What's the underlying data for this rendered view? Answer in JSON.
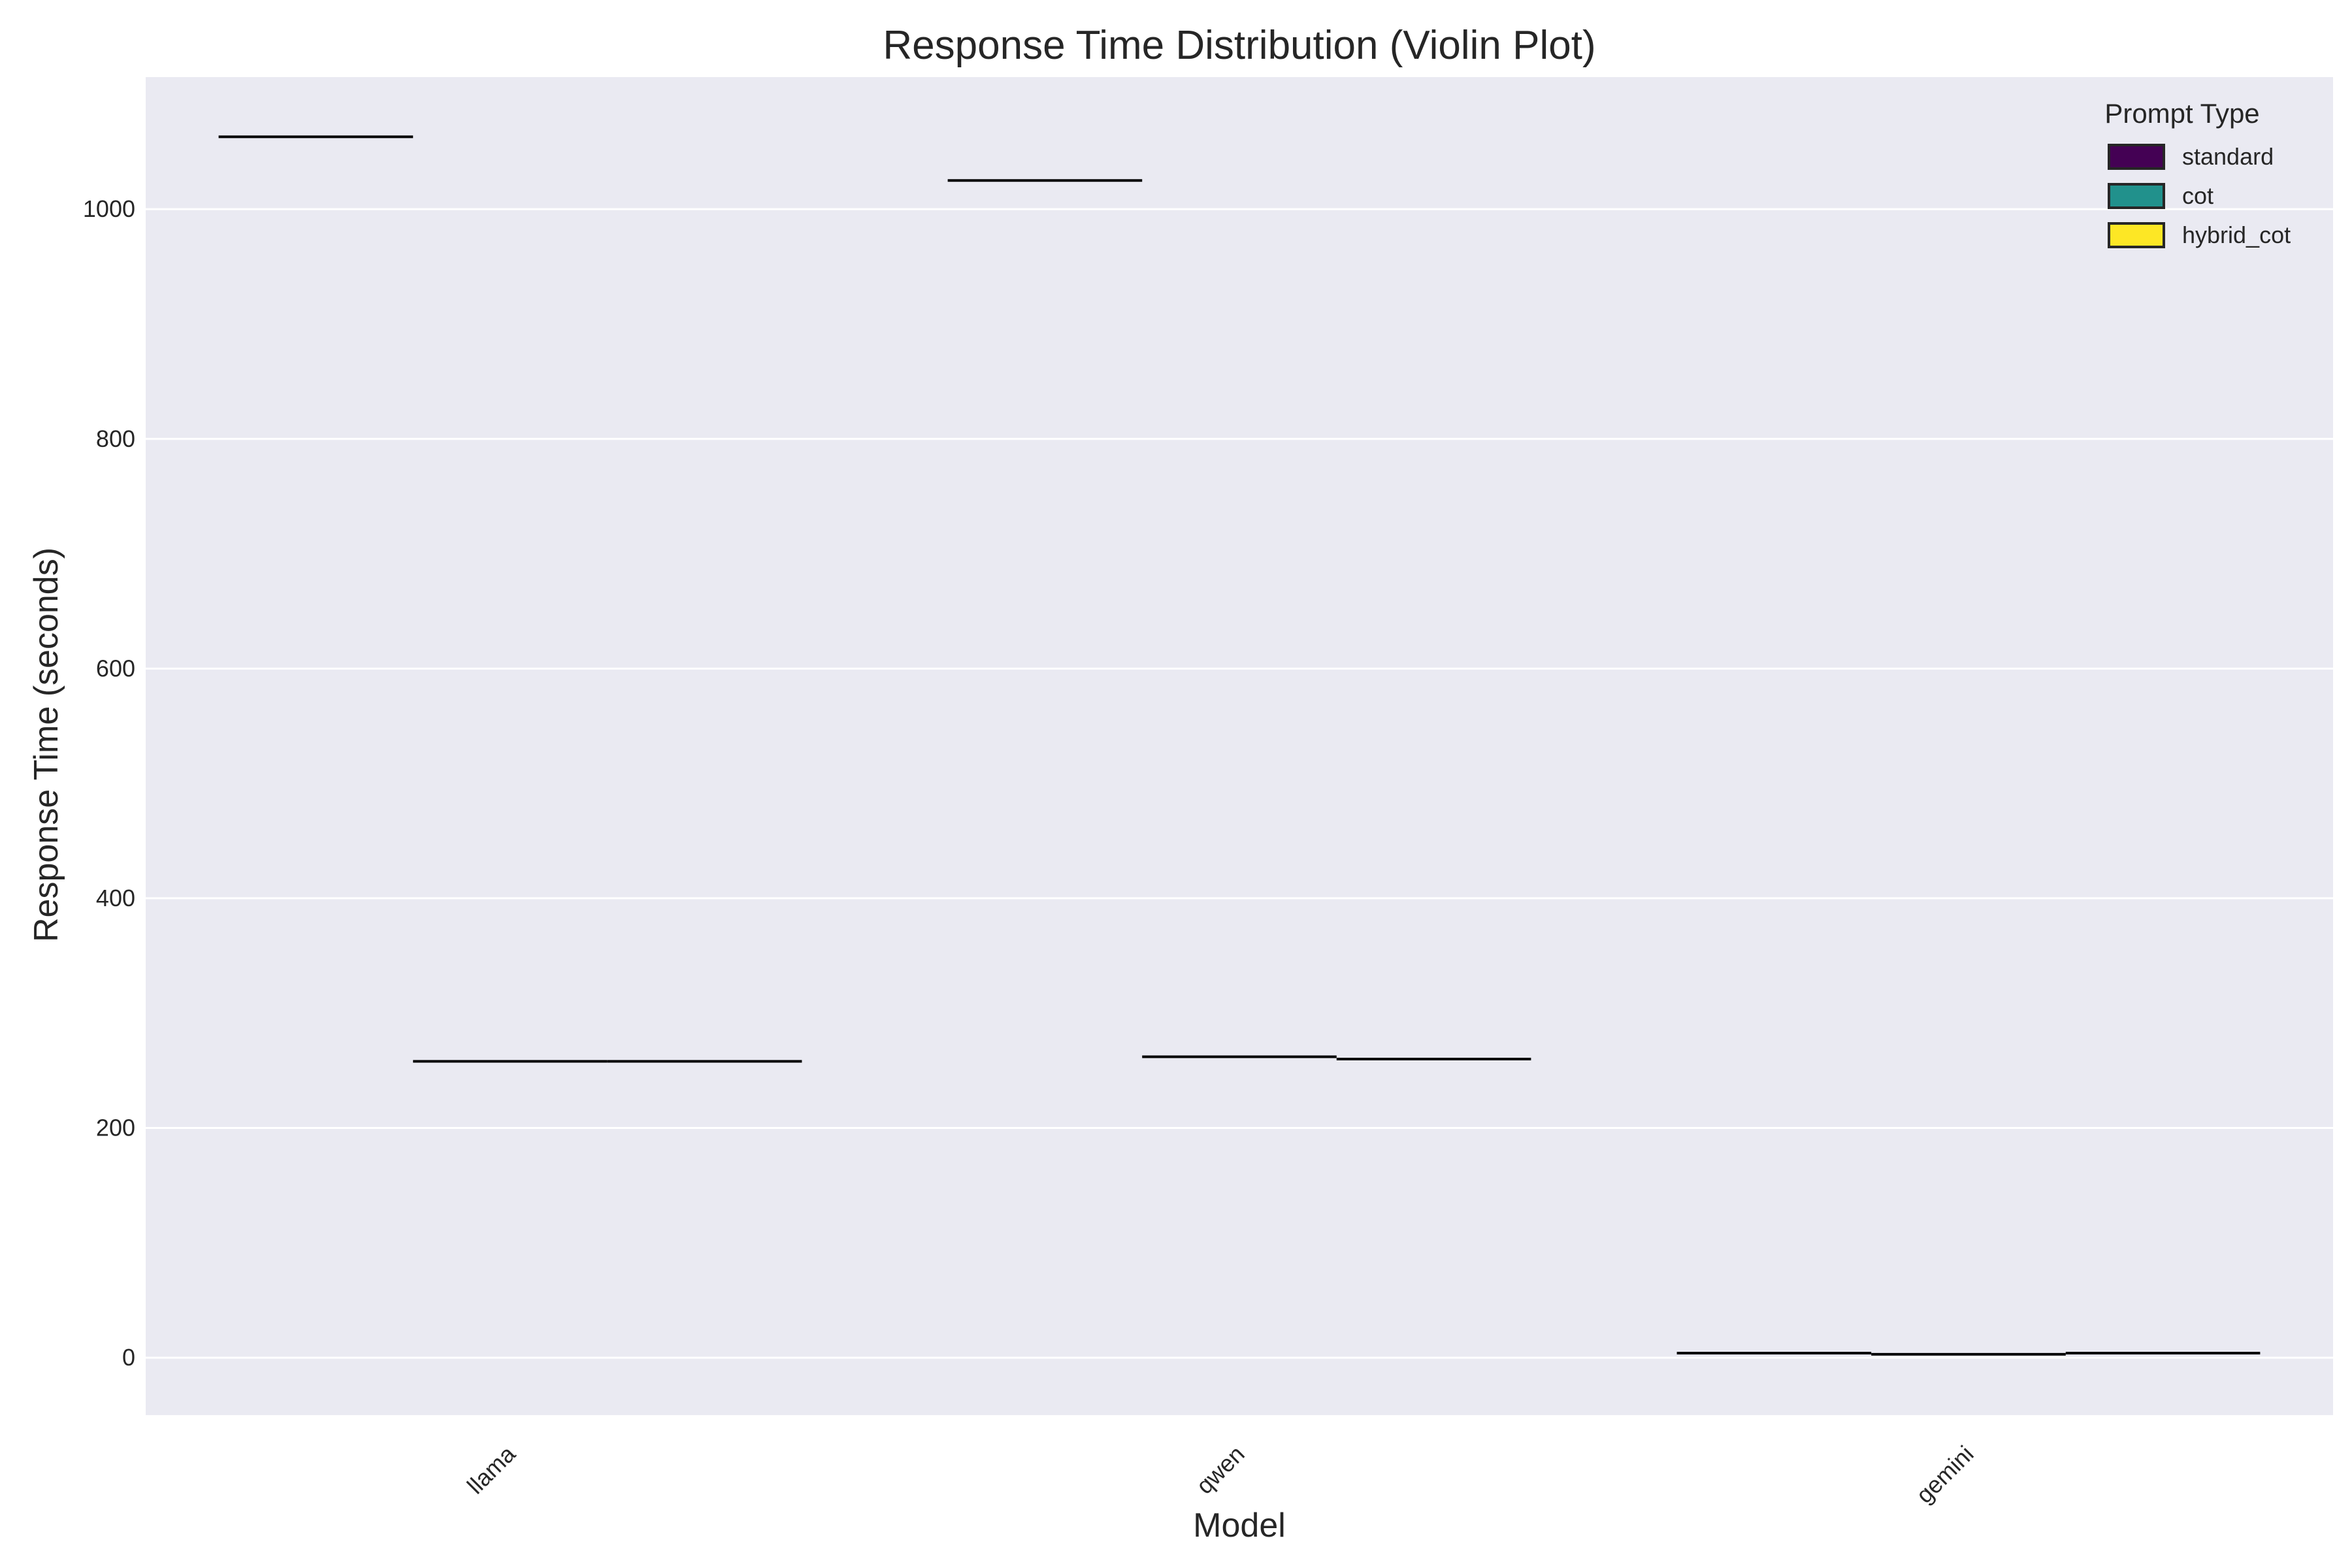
{
  "chart_data": {
    "type": "violin",
    "title": "Response Time Distribution (Violin Plot)",
    "xlabel": "Model",
    "ylabel": "Response Time (seconds)",
    "ylim": [
      -50,
      1115
    ],
    "yticks": [
      0,
      200,
      400,
      600,
      800,
      1000
    ],
    "categories": [
      "llama",
      "qwen",
      "gemini"
    ],
    "series": [
      {
        "name": "standard",
        "color": "#440154",
        "values": [
          1063,
          1025,
          4
        ]
      },
      {
        "name": "cot",
        "color": "#21918c",
        "values": [
          258,
          262,
          3
        ]
      },
      {
        "name": "hybrid_cot",
        "color": "#fde725",
        "values": [
          258,
          260,
          4
        ]
      }
    ],
    "grid": true,
    "legend": {
      "title": "Prompt Type",
      "placement": "top-right"
    },
    "colors": {
      "plot_bg": "#eaeaf2",
      "grid": "#ffffff",
      "median_line": "#000000"
    }
  }
}
